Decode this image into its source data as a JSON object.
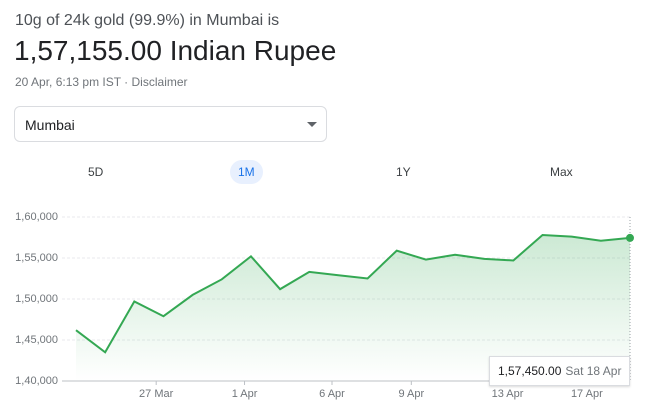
{
  "header": {
    "subtitle": "10g of 24k gold (99.9%) in Mumbai is",
    "price": "1,57,155.00 Indian Rupee",
    "timestamp": "20 Apr, 6:13 pm IST",
    "disclaimer": "Disclaimer"
  },
  "location_select": "Mumbai",
  "tabs": [
    "5D",
    "1M",
    "1Y",
    "Max"
  ],
  "selected_tab": 1,
  "chart_data": {
    "type": "line",
    "color": "#34a853",
    "x": [
      0,
      1,
      2,
      3,
      4,
      5,
      6,
      7,
      8,
      9,
      10,
      11,
      12,
      13,
      14,
      15,
      16,
      17,
      18,
      19
    ],
    "values": [
      146200,
      143500,
      149700,
      147900,
      150500,
      152400,
      155200,
      151200,
      153300,
      152900,
      152500,
      155900,
      154800,
      155400,
      154900,
      154700,
      157800,
      157600,
      157100,
      157450
    ],
    "xlim": [
      0,
      19
    ],
    "xticks": [
      {
        "value": 2.75,
        "label": "27 Mar"
      },
      {
        "value": 5.78,
        "label": "1 Apr"
      },
      {
        "value": 8.78,
        "label": "6 Apr"
      },
      {
        "value": 11.5,
        "label": "9 Apr"
      },
      {
        "value": 14.8,
        "label": "13 Apr"
      },
      {
        "value": 17.52,
        "label": "17 Apr"
      }
    ],
    "ylim": [
      140000,
      160000
    ],
    "yticks": [
      {
        "value": 140000,
        "label": "1,40,000"
      },
      {
        "value": 145000,
        "label": "1,45,000"
      },
      {
        "value": 150000,
        "label": "1,50,000"
      },
      {
        "value": 155000,
        "label": "1,55,000"
      },
      {
        "value": 160000,
        "label": "1,60,000"
      }
    ],
    "grid": true,
    "tooltip": {
      "value": "1,57,450.00",
      "date": "Sat 18 Apr"
    }
  }
}
